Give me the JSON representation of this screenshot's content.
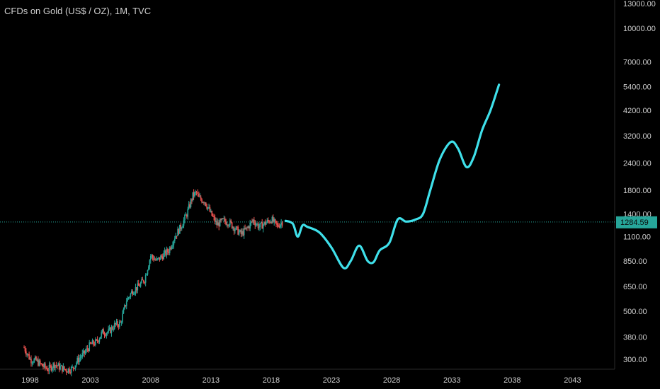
{
  "chart_data": {
    "type": "candlestick",
    "title": "CFDs on Gold (US$ / OZ), 1M, TVC",
    "y_scale": "log",
    "ylim": [
      270,
      13500
    ],
    "xlim": [
      1995.5,
      2046.5
    ],
    "y_ticks": [
      "13000.00",
      "10000.00",
      "7000.00",
      "5400.00",
      "4200.00",
      "3200.00",
      "2400.00",
      "1800.00",
      "1400.00",
      "1100.00",
      "850.00",
      "650.00",
      "500.00",
      "380.00",
      "300.00"
    ],
    "x_ticks": [
      "1998",
      "2003",
      "2008",
      "2013",
      "2018",
      "2023",
      "2028",
      "2033",
      "2038",
      "2043"
    ],
    "last_price": "1284.59",
    "colors": {
      "background": "#000000",
      "up": "#26a69a",
      "down": "#ef5350",
      "projection": "#3fe0ea",
      "price_line": "#26a69a"
    },
    "series": [
      {
        "kind": "candles",
        "x": [
          1997.5,
          1998.0,
          1998.5,
          1999.0,
          1999.5,
          2000.0,
          2000.5,
          2001.0,
          2001.5,
          2002.0,
          2002.5,
          2003.0,
          2003.5,
          2004.0,
          2004.5,
          2005.0,
          2005.5,
          2006.0,
          2006.5,
          2007.0,
          2007.5,
          2008.0,
          2008.5,
          2009.0,
          2009.5,
          2010.0,
          2010.5,
          2011.0,
          2011.5,
          2011.8,
          2012.0,
          2012.5,
          2013.0,
          2013.5,
          2014.0,
          2014.5,
          2015.0,
          2015.5,
          2016.0,
          2016.5,
          2017.0,
          2017.5,
          2018.0,
          2018.5,
          2019.0
        ],
        "values": [
          340,
          300,
          295,
          280,
          270,
          285,
          275,
          268,
          272,
          300,
          320,
          350,
          360,
          400,
          400,
          430,
          440,
          560,
          620,
          650,
          700,
          900,
          850,
          900,
          950,
          1100,
          1220,
          1400,
          1700,
          1750,
          1650,
          1600,
          1400,
          1250,
          1300,
          1280,
          1200,
          1130,
          1200,
          1310,
          1220,
          1270,
          1320,
          1230,
          1300
        ]
      },
      {
        "kind": "projection",
        "x": [
          2019.2,
          2019.8,
          2020.2,
          2020.6,
          2021.0,
          2022.0,
          2023.0,
          2024.0,
          2024.6,
          2025.3,
          2026.0,
          2026.5,
          2027.0,
          2027.8,
          2028.5,
          2029.2,
          2030.0,
          2030.6,
          2031.2,
          2032.0,
          2032.9,
          2033.5,
          2034.2,
          2034.8,
          2035.5,
          2036.2,
          2036.9
        ],
        "values": [
          1300,
          1260,
          1100,
          1240,
          1220,
          1150,
          980,
          790,
          850,
          1000,
          850,
          840,
          950,
          1030,
          1320,
          1290,
          1320,
          1400,
          1800,
          2500,
          3000,
          2800,
          2300,
          2550,
          3400,
          4200,
          5500
        ]
      }
    ]
  }
}
